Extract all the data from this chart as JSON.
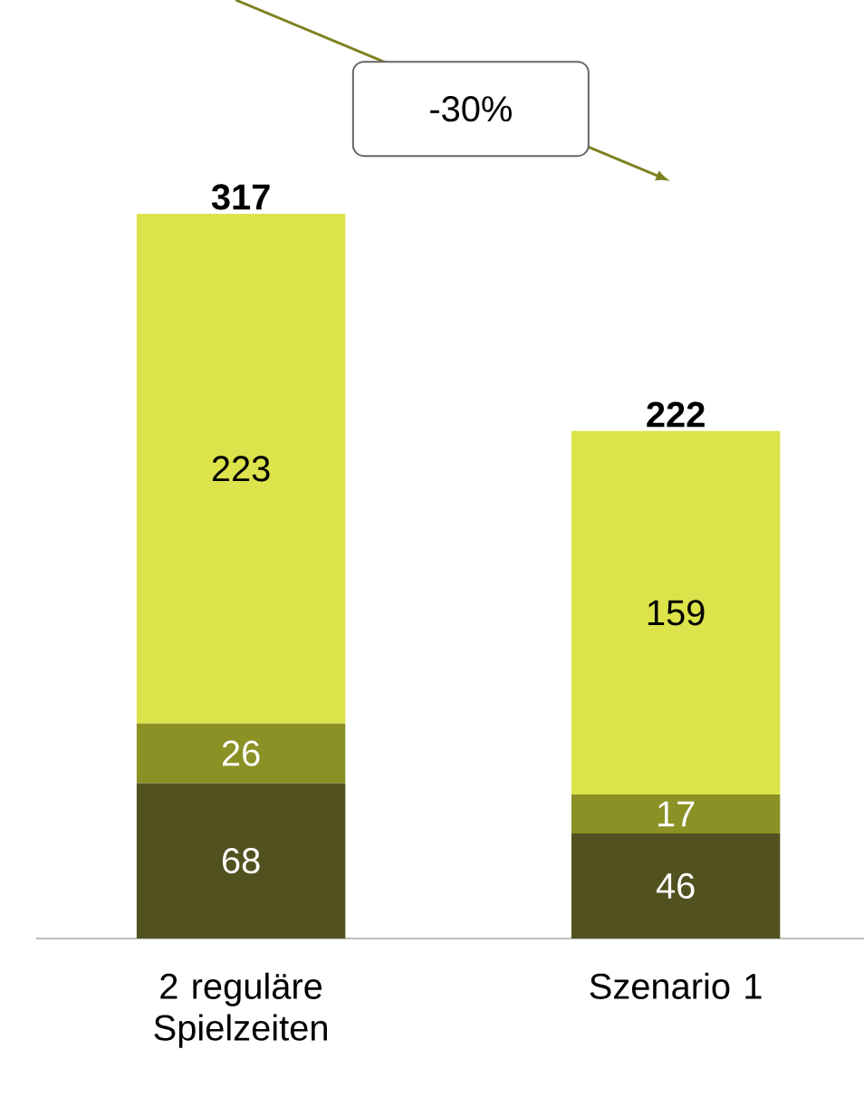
{
  "chart_data": {
    "type": "bar",
    "stacked": true,
    "data_labels": true,
    "categories": [
      "2 reguläre Spielzeiten",
      "Szenario 1"
    ],
    "series": [
      {
        "color": "#525220",
        "values": [
          68,
          46
        ]
      },
      {
        "color": "#8c9125",
        "values": [
          26,
          17
        ]
      },
      {
        "color": "#dde34a",
        "values": [
          223,
          159
        ]
      }
    ],
    "totals": [
      "317",
      "222"
    ],
    "annotations": [
      "-30%"
    ]
  }
}
